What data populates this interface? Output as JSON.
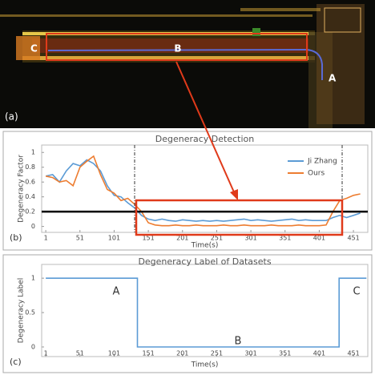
{
  "image_panel": {
    "labels": [
      "C",
      "B",
      "A"
    ],
    "panel_label": "(a)"
  },
  "chart_data": [
    {
      "type": "line",
      "title": "Degeneracy Detection",
      "panel_label": "(b)",
      "x_label": "Time(s)",
      "y_label": "Degeneracy Factor",
      "x": [
        1,
        11,
        21,
        31,
        41,
        51,
        61,
        71,
        81,
        91,
        101,
        111,
        121,
        131,
        141,
        151,
        161,
        171,
        181,
        191,
        201,
        211,
        221,
        231,
        241,
        251,
        261,
        271,
        281,
        291,
        301,
        311,
        321,
        331,
        341,
        351,
        361,
        371,
        381,
        391,
        401,
        411,
        421,
        431,
        441,
        451,
        461
      ],
      "series": [
        {
          "name": "Ji Zhang",
          "color": "#5b9bd5",
          "values": [
            0.68,
            0.7,
            0.6,
            0.75,
            0.85,
            0.82,
            0.9,
            0.85,
            0.75,
            0.55,
            0.42,
            0.4,
            0.32,
            0.25,
            0.15,
            0.1,
            0.08,
            0.1,
            0.08,
            0.07,
            0.09,
            0.08,
            0.07,
            0.08,
            0.07,
            0.08,
            0.07,
            0.08,
            0.09,
            0.1,
            0.08,
            0.09,
            0.08,
            0.07,
            0.08,
            0.09,
            0.1,
            0.08,
            0.09,
            0.08,
            0.08,
            0.08,
            0.12,
            0.15,
            0.12,
            0.15,
            0.18
          ]
        },
        {
          "name": "Ours",
          "color": "#ed7d31",
          "values": [
            0.68,
            0.66,
            0.6,
            0.62,
            0.55,
            0.8,
            0.88,
            0.95,
            0.7,
            0.5,
            0.45,
            0.35,
            0.38,
            0.3,
            0.2,
            0.05,
            0.02,
            0.01,
            0.01,
            0.02,
            0.01,
            0.01,
            0.02,
            0.01,
            0.01,
            0.01,
            0.02,
            0.01,
            0.01,
            0.02,
            0.01,
            0.01,
            0.01,
            0.02,
            0.01,
            0.01,
            0.01,
            0.02,
            0.01,
            0.01,
            0.01,
            0.02,
            0.2,
            0.35,
            0.38,
            0.42,
            0.44
          ]
        }
      ],
      "threshold": 0.2,
      "xlim": [
        -5,
        472
      ],
      "ylim": [
        -0.08,
        1.1
      ],
      "xticks": [
        1,
        51,
        101,
        151,
        201,
        251,
        301,
        351,
        401,
        451
      ],
      "yticks": [
        0,
        0.2,
        0.4,
        0.6,
        0.8,
        1
      ],
      "legend": "upper right"
    },
    {
      "type": "line",
      "title": "Degeneracy Label of Datasets",
      "panel_label": "(c)",
      "x_label": "Time(s)",
      "y_label": "Degeneracy Label",
      "x": [
        1,
        135,
        135,
        430,
        430,
        470
      ],
      "series": [
        {
          "name": null,
          "color": "#5b9bd5",
          "values": [
            1,
            1,
            0,
            0,
            1,
            1
          ]
        }
      ],
      "annotations": [
        "A",
        "B",
        "C"
      ],
      "xlim": [
        -5,
        472
      ],
      "ylim": [
        -0.14,
        1.2
      ],
      "xticks": [
        1,
        51,
        101,
        151,
        201,
        251,
        301,
        351,
        401,
        451
      ],
      "yticks": [
        0,
        0.5,
        1
      ]
    }
  ]
}
